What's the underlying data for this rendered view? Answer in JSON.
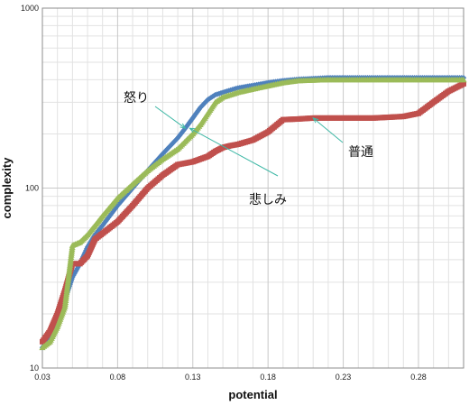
{
  "chart_data": {
    "type": "scatter",
    "xlabel": "potential",
    "ylabel": "complexity",
    "xlim": [
      0.03,
      0.31
    ],
    "ylim": [
      10,
      1000
    ],
    "y_scale": "log",
    "grid": true,
    "x_ticks": [
      "0.03",
      "0.08",
      "0.13",
      "0.18",
      "0.23",
      "0.28"
    ],
    "y_ticks": [
      "10",
      "100",
      "1000"
    ],
    "colors": {
      "blue": "#4f81bd",
      "red": "#c0504d",
      "green": "#9bbb59",
      "annotation": "#3fb8a6"
    },
    "annotations": [
      {
        "text": "怒り",
        "series": "blue",
        "point": [
          0.125,
          215
        ]
      },
      {
        "text": "悲しみ",
        "series": "green",
        "point": [
          0.128,
          215
        ]
      },
      {
        "text": "普通",
        "series": "red",
        "point": [
          0.21,
          245
        ]
      }
    ],
    "series": [
      {
        "color": "#4f81bd",
        "marker": "diamond",
        "x": [
          0.03,
          0.035,
          0.04,
          0.045,
          0.05,
          0.055,
          0.06,
          0.065,
          0.07,
          0.08,
          0.09,
          0.1,
          0.11,
          0.12,
          0.125,
          0.13,
          0.135,
          0.14,
          0.145,
          0.15,
          0.155,
          0.16,
          0.17,
          0.18,
          0.19,
          0.2,
          0.22,
          0.25,
          0.28,
          0.31
        ],
        "y": [
          13,
          15,
          18,
          24,
          32,
          38,
          47,
          55,
          62,
          80,
          100,
          125,
          155,
          190,
          215,
          245,
          280,
          310,
          330,
          340,
          350,
          360,
          372,
          385,
          395,
          402,
          410,
          410,
          410,
          410
        ]
      },
      {
        "color": "#c0504d",
        "marker": "square",
        "x": [
          0.03,
          0.035,
          0.04,
          0.045,
          0.05,
          0.055,
          0.06,
          0.065,
          0.07,
          0.08,
          0.09,
          0.1,
          0.11,
          0.12,
          0.13,
          0.14,
          0.145,
          0.15,
          0.155,
          0.16,
          0.17,
          0.18,
          0.19,
          0.2,
          0.21,
          0.23,
          0.25,
          0.27,
          0.28,
          0.29,
          0.3,
          0.31
        ],
        "y": [
          14,
          16,
          20,
          27,
          38,
          38,
          42,
          52,
          56,
          65,
          80,
          100,
          118,
          135,
          140,
          150,
          160,
          168,
          172,
          175,
          185,
          205,
          240,
          242,
          245,
          245,
          245,
          250,
          260,
          300,
          345,
          380
        ]
      },
      {
        "color": "#9bbb59",
        "marker": "triangle",
        "x": [
          0.03,
          0.035,
          0.04,
          0.045,
          0.05,
          0.055,
          0.06,
          0.065,
          0.07,
          0.08,
          0.09,
          0.1,
          0.11,
          0.12,
          0.13,
          0.135,
          0.14,
          0.145,
          0.15,
          0.16,
          0.17,
          0.18,
          0.19,
          0.2,
          0.22,
          0.25,
          0.28,
          0.31
        ],
        "y": [
          13,
          14,
          17,
          22,
          48,
          50,
          55,
          62,
          70,
          88,
          105,
          125,
          145,
          165,
          200,
          225,
          260,
          300,
          320,
          340,
          355,
          370,
          385,
          395,
          400,
          400,
          400,
          400
        ]
      }
    ]
  }
}
